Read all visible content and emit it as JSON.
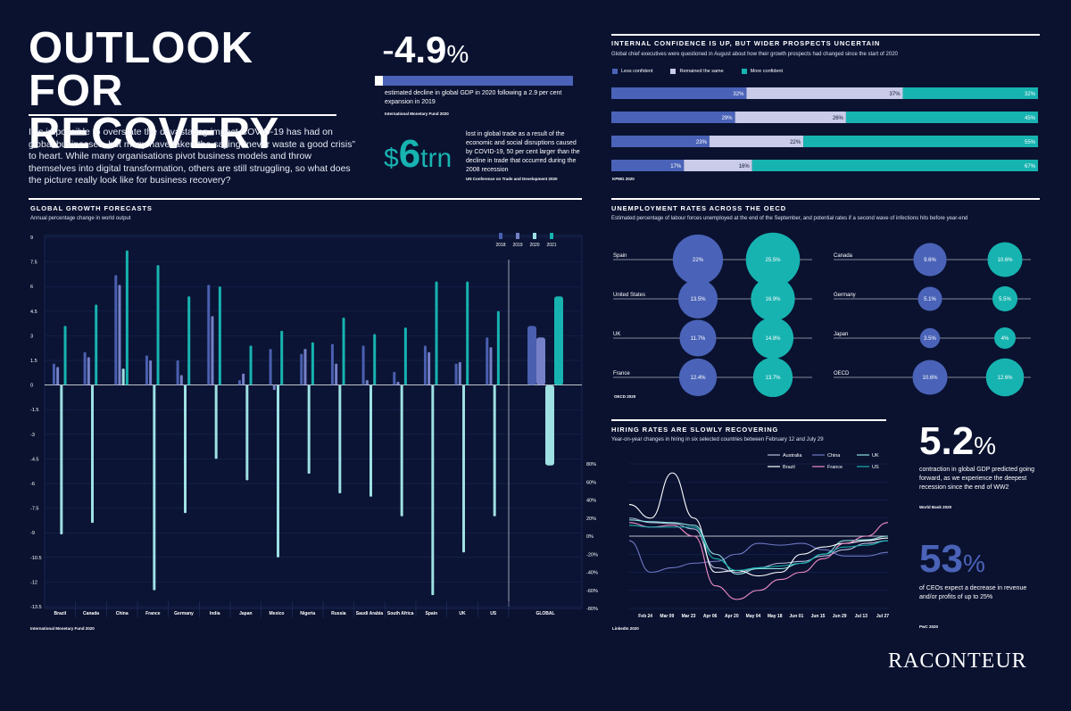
{
  "header": {
    "title_line1": "OUTLOOK",
    "title_line2": "FOR RECOVERY",
    "intro": "It is impossible to overstate the devastating impact COVID-19 has had on global businesses, but many have taken the saying “never waste a good crisis” to heart. While many organisations pivot business models and throw themselves into digital transformation, others are still struggling, so what does the picture really look like for business recovery?"
  },
  "stat_gdp": {
    "sign": "-",
    "number": "4.9",
    "unit": "%",
    "text": "estimated decline in global GDP in 2020 following a 2.9 per cent expansion in 2019",
    "source": "International Monetary Fund 2020",
    "bar_fraction": 0.04
  },
  "stat_trade": {
    "prefix": "$",
    "number": "6",
    "suffix": "trn",
    "text": "lost in global trade as a result of the economic and social disruptions caused by COVID-19, 50 per cent larger than the decline in trade that occurred during the 2008 recession",
    "source": "UN Conference on Trade and Development 2020"
  },
  "confidence": {
    "title": "INTERNAL CONFIDENCE IS UP, BUT WIDER PROSPECTS UNCERTAIN",
    "subtitle": "Global chief executives were questioned in August about how their growth prospects had changed since the start of 2020",
    "source": "KPMG 2020",
    "colors": {
      "less": "#4a63b8",
      "same": "#c9cbe8",
      "more": "#17b3b0"
    },
    "chart_data": {
      "type": "bar",
      "orientation": "horizontal-stacked",
      "series": [
        {
          "name": "Less confident",
          "values": [
            32,
            29,
            23,
            17
          ],
          "labels": [
            "32%",
            "29%",
            "23%",
            "17%"
          ]
        },
        {
          "name": "Remained the same",
          "values": [
            37,
            26,
            22,
            16
          ],
          "labels": [
            "37%",
            "26%",
            "22%",
            "16%"
          ]
        },
        {
          "name": "More confident",
          "values": [
            32,
            45,
            55,
            67
          ],
          "labels": [
            "32%",
            "45%",
            "55%",
            "67%"
          ]
        }
      ]
    }
  },
  "growth": {
    "title": "GLOBAL GROWTH FORECASTS",
    "subtitle": "Annual percentage change in world output",
    "source": "International Monetary Fund 2020",
    "colors": {
      "2018": "#4a5fb0",
      "2019": "#7580c8",
      "2020": "#9ee0e4",
      "2021": "#17b3b0"
    },
    "chart_data": {
      "type": "bar",
      "categories": [
        "Brazil",
        "Canada",
        "China",
        "France",
        "Germany",
        "India",
        "Japan",
        "Mexico",
        "Nigeria",
        "Russia",
        "Saudi Arabia",
        "South Africa",
        "Spain",
        "UK",
        "US",
        "GLOBAL"
      ],
      "series": [
        {
          "name": "2018",
          "values": [
            1.3,
            2.0,
            6.7,
            1.8,
            1.5,
            6.1,
            0.3,
            2.2,
            1.9,
            2.5,
            2.4,
            0.8,
            2.4,
            1.3,
            2.9,
            3.6
          ]
        },
        {
          "name": "2019",
          "values": [
            1.1,
            1.7,
            6.1,
            1.5,
            0.6,
            4.2,
            0.7,
            -0.3,
            2.2,
            1.3,
            0.3,
            0.2,
            2.0,
            1.4,
            2.3,
            2.9
          ]
        },
        {
          "name": "2020",
          "values": [
            -9.1,
            -8.4,
            1.0,
            -12.5,
            -7.8,
            -4.5,
            -5.8,
            -10.5,
            -5.4,
            -6.6,
            -6.8,
            -8.0,
            -12.8,
            -10.2,
            -8.0,
            -4.9
          ]
        },
        {
          "name": "2021",
          "values": [
            3.6,
            4.9,
            8.2,
            7.3,
            5.4,
            6.0,
            2.4,
            3.3,
            2.6,
            4.1,
            3.1,
            3.5,
            6.3,
            6.3,
            4.5,
            5.4
          ]
        }
      ],
      "yticks": [
        "9",
        "7.5",
        "6",
        "4.5",
        "3",
        "1.5",
        "0",
        "-1.5",
        "-3",
        "-4.5",
        "-6",
        "-7.5",
        "-9",
        "-10.5",
        "-12",
        "-13.5"
      ],
      "ylim": [
        -13.5,
        9
      ]
    }
  },
  "unemployment": {
    "title": "UNEMPLOYMENT RATES ACROSS THE OECD",
    "subtitle": "Estimated percentage of labour forces unemployed at the end of the September, and potential rates if a second wave of infections hits before year-end",
    "source": "OECD 2020",
    "colors": {
      "current": "#4a63b8",
      "second_wave": "#17b3b0"
    },
    "chart_data": {
      "type": "scatter",
      "left": [
        {
          "country": "Spain",
          "current": 22,
          "current_label": "22%",
          "second_wave": 25.5,
          "second_wave_label": "25.5%"
        },
        {
          "country": "United States",
          "current": 13.5,
          "current_label": "13.5%",
          "second_wave": 16.9,
          "second_wave_label": "16.9%"
        },
        {
          "country": "UK",
          "current": 11.7,
          "current_label": "11.7%",
          "second_wave": 14.8,
          "second_wave_label": "14.8%"
        },
        {
          "country": "France",
          "current": 12.4,
          "current_label": "12.4%",
          "second_wave": 13.7,
          "second_wave_label": "13.7%"
        }
      ],
      "right": [
        {
          "country": "Canada",
          "current": 9.6,
          "current_label": "9.6%",
          "second_wave": 10.6,
          "second_wave_label": "10.6%"
        },
        {
          "country": "Germany",
          "current": 5.1,
          "current_label": "5.1%",
          "second_wave": 5.5,
          "second_wave_label": "5.5%"
        },
        {
          "country": "Japan",
          "current": 3.5,
          "current_label": "3.5%",
          "second_wave": 4,
          "second_wave_label": "4%"
        },
        {
          "country": "OECD",
          "current": 10.6,
          "current_label": "10.6%",
          "second_wave": 12.6,
          "second_wave_label": "12.6%"
        }
      ]
    }
  },
  "hiring": {
    "title": "HIRING RATES ARE SLOWLY RECOVERING",
    "subtitle": "Year-on-year changes in hiring in six selected countries between February 12 and July 29",
    "source": "LinkedIn 2020",
    "chart_data": {
      "type": "line",
      "x": [
        "Feb 12",
        "Feb 24",
        "Mar 09",
        "Mar 23",
        "Apr 06",
        "Apr 20",
        "May 04",
        "May 18",
        "Jun 01",
        "Jun 15",
        "Jun 29",
        "Jul 13",
        "Jul 29"
      ],
      "xticks": [
        "Feb 24",
        "Mar 09",
        "Mar 23",
        "Apr 06",
        "Apr 20",
        "May 04",
        "May 18",
        "Jun 01",
        "Jun 15",
        "Jun 29",
        "Jul 13",
        "Jul 27"
      ],
      "yticks": [
        "80%",
        "60%",
        "40%",
        "20%",
        "0%",
        "-20%",
        "-40%",
        "-60%",
        "-80%"
      ],
      "ylim": [
        -80,
        80
      ],
      "series": [
        {
          "name": "Australia",
          "color": "#b9bbd9",
          "values": [
            20,
            15,
            14,
            8,
            -35,
            -40,
            -35,
            -30,
            -28,
            -22,
            -15,
            -8,
            -5
          ]
        },
        {
          "name": "China",
          "color": "#7078c4",
          "values": [
            -5,
            -40,
            -35,
            -30,
            -28,
            -20,
            -8,
            -10,
            -8,
            -15,
            -22,
            -22,
            -18
          ]
        },
        {
          "name": "UK",
          "color": "#8fe0e0",
          "values": [
            18,
            16,
            15,
            12,
            -20,
            -42,
            -36,
            -36,
            -30,
            -20,
            -5,
            -4,
            0
          ]
        },
        {
          "name": "Brazil",
          "color": "#ffffff",
          "values": [
            35,
            20,
            70,
            20,
            -40,
            -38,
            -44,
            -40,
            -20,
            -12,
            -8,
            -5,
            -2
          ]
        },
        {
          "name": "France",
          "color": "#f28ec6",
          "values": [
            15,
            10,
            12,
            0,
            -55,
            -70,
            -60,
            -48,
            -40,
            -25,
            -8,
            0,
            15
          ]
        },
        {
          "name": "US",
          "color": "#17b3b0",
          "values": [
            12,
            10,
            10,
            10,
            -25,
            -38,
            -35,
            -33,
            -30,
            -20,
            -12,
            -10,
            -5
          ]
        }
      ]
    }
  },
  "stat_contraction": {
    "number": "5.2",
    "unit": "%",
    "text": "contraction in global GDP predicted going forward, as we experience the deepest recession since the end of WW2",
    "source": "World Bank 2020"
  },
  "stat_ceos": {
    "number": "53",
    "unit": "%",
    "text": "of CEOs expect a decrease in revenue and/or profits of up to 25%",
    "source": "PwC 2020"
  },
  "brand": {
    "logo": "RACONTEUR"
  }
}
